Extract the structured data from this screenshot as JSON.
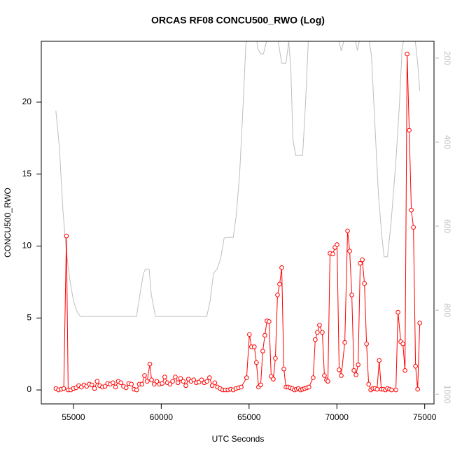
{
  "chart_data": {
    "type": "line",
    "title": "ORCAS RF08 CONCU500_RWO (Log)",
    "x_label": "UTC Seconds",
    "y_label": "CONCU500_RWO",
    "xlim": [
      53170,
      75530
    ],
    "xticks": [
      55000,
      60000,
      65000,
      70000,
      75000
    ],
    "ylim": [
      -0.97,
      24.23
    ],
    "yticks": [
      0,
      5,
      10,
      15,
      20
    ],
    "y2lim": [
      1023,
      160
    ],
    "y2ticks": [
      200,
      400,
      600,
      800,
      1000
    ],
    "series": [
      {
        "color": "#bebebe",
        "axis": "y2",
        "markers": false,
        "x": [
          54000,
          54200,
          54400,
          54600,
          54800,
          55000,
          55200,
          55400,
          58590,
          58790,
          58990,
          59110,
          59310,
          59430,
          59670,
          62590,
          62780,
          62980,
          63180,
          63380,
          63580,
          63780,
          64100,
          64260,
          64460,
          64660,
          64820,
          64980,
          65420,
          65500,
          65660,
          65820,
          65980,
          66140,
          66620,
          66860,
          67100,
          67260,
          67380,
          67500,
          67660,
          68050,
          68210,
          68370,
          68530,
          70050,
          70250,
          70450,
          71010,
          71170,
          71330,
          71810,
          71970,
          72170,
          72370,
          72570,
          72690,
          72880,
          73080,
          73360,
          73560,
          73720,
          73880,
          74440,
          74600,
          74720
        ],
        "values": [
          325,
          412,
          562,
          662,
          728,
          778,
          803,
          815,
          815,
          762,
          712,
          702,
          702,
          762,
          815,
          815,
          778,
          712,
          702,
          678,
          628,
          627,
          627,
          578,
          478,
          312,
          165,
          150,
          150,
          178,
          190,
          190,
          162,
          150,
          150,
          212,
          212,
          160,
          228,
          395,
          432,
          432,
          312,
          162,
          150,
          150,
          183,
          150,
          150,
          182,
          150,
          150,
          195,
          362,
          528,
          628,
          673,
          673,
          595,
          445,
          312,
          170,
          150,
          150,
          212,
          278
        ]
      },
      {
        "color": "#ff0000",
        "axis": "y",
        "markers": true,
        "x": [
          54000,
          54150,
          54300,
          54450,
          54600,
          54700,
          54850,
          55000,
          55150,
          55300,
          55450,
          55600,
          55750,
          55900,
          56050,
          56200,
          56350,
          56500,
          56650,
          56800,
          56950,
          57100,
          57250,
          57400,
          57550,
          57700,
          57850,
          58000,
          58150,
          58300,
          58450,
          58600,
          58750,
          58900,
          59050,
          59200,
          59350,
          59450,
          59600,
          59750,
          59900,
          60050,
          60200,
          60350,
          60500,
          60650,
          60800,
          60950,
          61100,
          61250,
          61400,
          61550,
          61700,
          61850,
          62000,
          62150,
          62300,
          62450,
          62600,
          62750,
          62900,
          63050,
          63200,
          63350,
          63500,
          63650,
          63800,
          63950,
          64100,
          64250,
          64400,
          64550,
          64860,
          65020,
          65140,
          65300,
          65420,
          65540,
          65660,
          65780,
          65900,
          66020,
          66140,
          66260,
          66380,
          66500,
          66620,
          66740,
          66860,
          66980,
          67100,
          67220,
          67340,
          67460,
          67580,
          67700,
          67810,
          67930,
          68050,
          68170,
          68290,
          68410,
          68650,
          68770,
          68890,
          69010,
          69170,
          69290,
          69410,
          69490,
          69610,
          69770,
          69890,
          70010,
          70130,
          70250,
          70450,
          70610,
          70730,
          70850,
          70970,
          71090,
          71210,
          71330,
          71450,
          71570,
          71690,
          71810,
          71930,
          72050,
          72170,
          72290,
          72410,
          72530,
          72650,
          72770,
          72880,
          73000,
          73120,
          73360,
          73480,
          73640,
          73760,
          73880,
          74000,
          74120,
          74240,
          74360,
          74480,
          74600,
          74720
        ],
        "values": [
          0.1,
          0.0,
          0.05,
          0.1,
          10.7,
          0.0,
          0.0,
          0.1,
          0.15,
          0.3,
          0.2,
          0.35,
          0.25,
          0.4,
          0.35,
          0.1,
          0.6,
          0.3,
          0.2,
          0.25,
          0.45,
          0.4,
          0.5,
          0.2,
          0.6,
          0.5,
          0.25,
          0.15,
          0.45,
          0.4,
          0.05,
          0.0,
          0.4,
          0.4,
          1.0,
          0.6,
          1.8,
          0.7,
          0.4,
          0.6,
          0.4,
          0.45,
          0.9,
          0.5,
          0.4,
          0.6,
          0.9,
          0.5,
          0.8,
          0.6,
          0.3,
          0.75,
          0.6,
          0.7,
          0.5,
          0.55,
          0.7,
          0.5,
          0.6,
          0.85,
          0.3,
          0.5,
          0.2,
          0.1,
          0.0,
          0.0,
          0.0,
          0.05,
          0.0,
          0.1,
          0.15,
          0.2,
          0.85,
          3.85,
          3.0,
          3.0,
          1.9,
          0.2,
          0.35,
          2.7,
          3.8,
          4.8,
          4.75,
          0.95,
          0.75,
          2.2,
          6.6,
          7.35,
          8.5,
          1.45,
          0.2,
          0.2,
          0.15,
          0.1,
          0.0,
          0.05,
          0.1,
          0.0,
          0.05,
          0.1,
          0.15,
          0.2,
          0.85,
          3.5,
          4.0,
          4.5,
          4.0,
          1.0,
          0.7,
          0.6,
          9.5,
          9.45,
          9.9,
          10.1,
          1.4,
          1.0,
          3.3,
          11.05,
          9.65,
          6.6,
          1.35,
          1.05,
          1.75,
          8.8,
          9.05,
          7.4,
          3.2,
          0.4,
          0.0,
          0.1,
          0.1,
          0.05,
          2.05,
          0.05,
          0.05,
          0.0,
          0.1,
          0.05,
          0.0,
          0.0,
          5.4,
          3.35,
          3.2,
          1.35,
          23.35,
          18.05,
          12.5,
          11.3,
          1.65,
          0.05,
          4.65
        ]
      }
    ]
  }
}
